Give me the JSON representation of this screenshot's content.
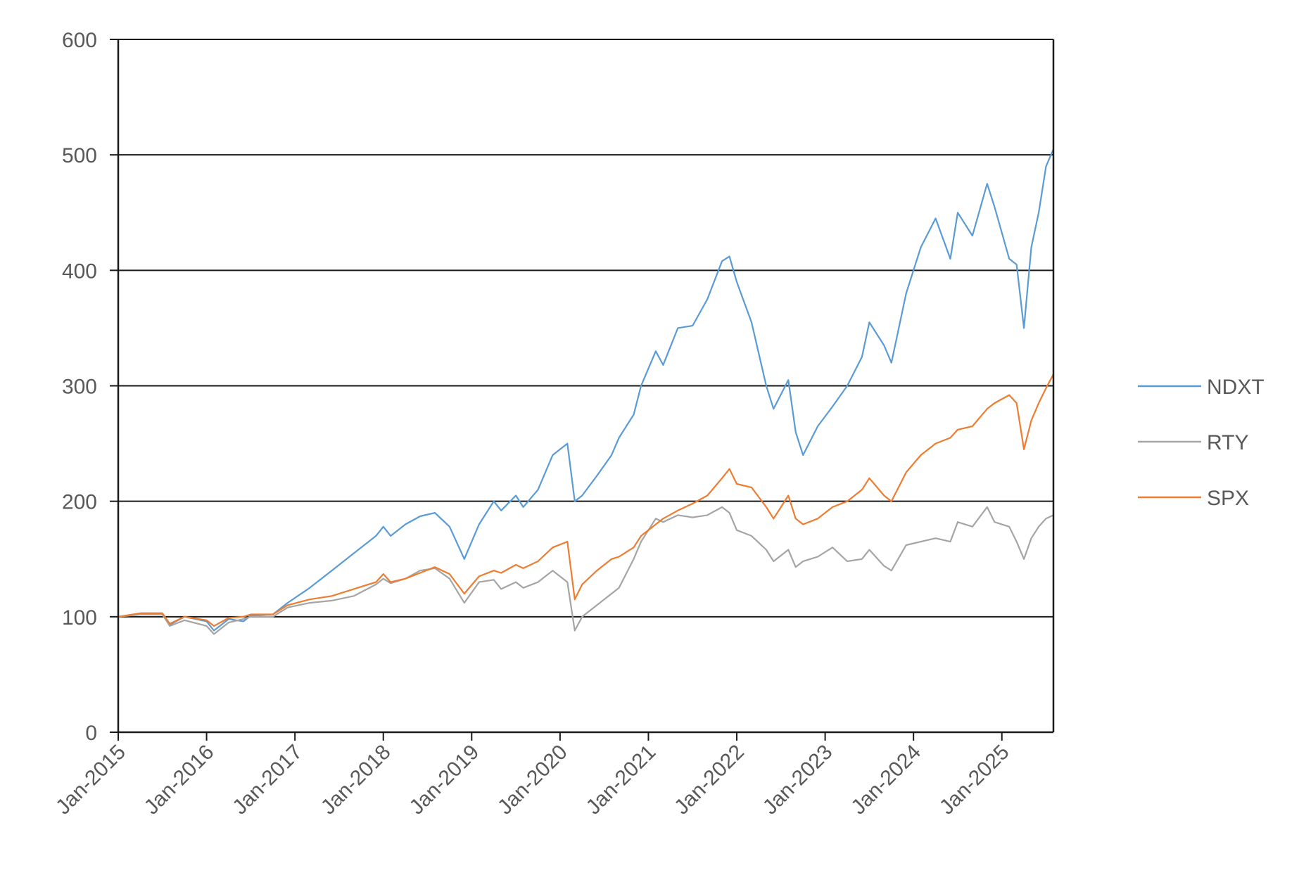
{
  "chart_data": {
    "type": "line",
    "title": "",
    "xlabel": "",
    "ylabel": "",
    "ylim": [
      0,
      600
    ],
    "yticks": [
      0,
      100,
      200,
      300,
      400,
      500,
      600
    ],
    "xlim": [
      "2015-01",
      "2025-08"
    ],
    "xticks": [
      "Jan-2015",
      "Jan-2016",
      "Jan-2017",
      "Jan-2018",
      "Jan-2019",
      "Jan-2020",
      "Jan-2021",
      "Jan-2022",
      "Jan-2023",
      "Jan-2024",
      "Jan-2025"
    ],
    "grid": "horizontal",
    "legend_position": "right",
    "x": [
      "2015-01",
      "2015-04",
      "2015-07",
      "2015-08",
      "2015-10",
      "2016-01",
      "2016-02",
      "2016-04",
      "2016-06",
      "2016-07",
      "2016-10",
      "2016-12",
      "2017-03",
      "2017-06",
      "2017-09",
      "2017-12",
      "2018-01",
      "2018-02",
      "2018-04",
      "2018-06",
      "2018-08",
      "2018-10",
      "2018-12",
      "2019-02",
      "2019-04",
      "2019-05",
      "2019-07",
      "2019-08",
      "2019-10",
      "2019-12",
      "2020-02",
      "2020-03",
      "2020-04",
      "2020-06",
      "2020-08",
      "2020-09",
      "2020-11",
      "2020-12",
      "2021-02",
      "2021-03",
      "2021-05",
      "2021-07",
      "2021-09",
      "2021-11",
      "2021-12",
      "2022-01",
      "2022-03",
      "2022-05",
      "2022-06",
      "2022-08",
      "2022-09",
      "2022-10",
      "2022-12",
      "2023-02",
      "2023-04",
      "2023-06",
      "2023-07",
      "2023-09",
      "2023-10",
      "2023-12",
      "2024-02",
      "2024-04",
      "2024-06",
      "2024-07",
      "2024-09",
      "2024-11",
      "2024-12",
      "2025-02",
      "2025-03",
      "2025-04",
      "2025-05",
      "2025-06",
      "2025-07",
      "2025-08"
    ],
    "series": [
      {
        "name": "NDXT",
        "color": "#5b9bd5",
        "values": [
          100,
          103,
          103,
          93,
          100,
          96,
          88,
          98,
          96,
          101,
          102,
          112,
          125,
          140,
          155,
          170,
          178,
          170,
          180,
          187,
          190,
          178,
          150,
          180,
          200,
          192,
          205,
          195,
          210,
          240,
          250,
          200,
          205,
          222,
          240,
          255,
          275,
          300,
          330,
          318,
          350,
          352,
          375,
          408,
          412,
          390,
          355,
          300,
          280,
          305,
          260,
          240,
          265,
          282,
          300,
          325,
          355,
          335,
          320,
          380,
          420,
          445,
          410,
          450,
          430,
          475,
          455,
          410,
          405,
          350,
          420,
          450,
          490,
          505
        ]
      },
      {
        "name": "RTY",
        "color": "#a5a5a5",
        "values": [
          100,
          102,
          102,
          92,
          97,
          92,
          85,
          95,
          98,
          100,
          100,
          108,
          112,
          114,
          118,
          128,
          133,
          129,
          133,
          140,
          142,
          133,
          112,
          130,
          132,
          124,
          130,
          125,
          130,
          140,
          130,
          88,
          100,
          110,
          120,
          125,
          150,
          165,
          185,
          182,
          188,
          186,
          188,
          195,
          190,
          175,
          170,
          158,
          148,
          158,
          143,
          148,
          152,
          160,
          148,
          150,
          158,
          144,
          140,
          162,
          165,
          168,
          165,
          182,
          178,
          195,
          182,
          178,
          165,
          150,
          168,
          178,
          185,
          188
        ]
      },
      {
        "name": "SPX",
        "color": "#ed7d31",
        "values": [
          100,
          103,
          103,
          94,
          100,
          97,
          92,
          99,
          100,
          102,
          102,
          110,
          115,
          118,
          124,
          130,
          137,
          130,
          133,
          138,
          143,
          137,
          120,
          135,
          140,
          138,
          145,
          142,
          148,
          160,
          165,
          115,
          128,
          140,
          150,
          152,
          160,
          170,
          180,
          185,
          192,
          198,
          205,
          220,
          228,
          215,
          212,
          195,
          185,
          205,
          185,
          180,
          185,
          195,
          200,
          210,
          220,
          205,
          200,
          225,
          240,
          250,
          255,
          262,
          265,
          280,
          285,
          292,
          285,
          245,
          270,
          285,
          298,
          310
        ]
      }
    ]
  }
}
